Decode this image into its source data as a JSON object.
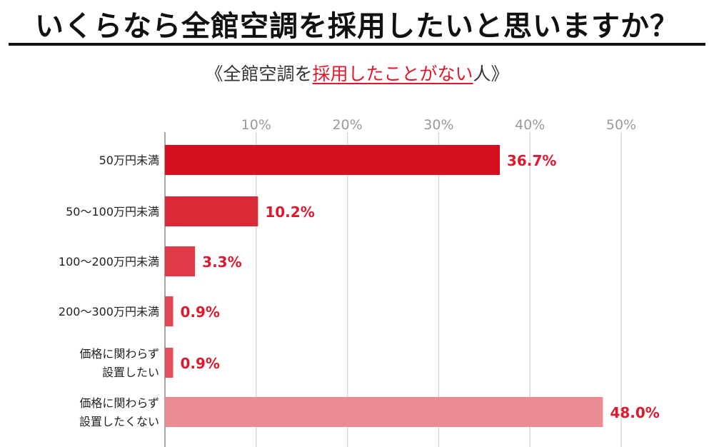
{
  "headline": "いくらなら全館空調を採用したいと思いますか？",
  "subtitle": {
    "prefix": "《全館空調を",
    "highlight": "採用したことがない",
    "suffix": "人》"
  },
  "colors": {
    "accent": "#e0182e",
    "bars": [
      "#d50f20",
      "#da2a38",
      "#e03a48",
      "#e24652",
      "#e44f5c",
      "#eb8b92"
    ],
    "label_text": "#e0182e",
    "grid": "#d8d8d8",
    "axis": "#888888",
    "tick_text": "#999999"
  },
  "chart_data": {
    "type": "bar",
    "orientation": "horizontal",
    "categories": [
      [
        "50万円未満"
      ],
      [
        "50〜100万円未満"
      ],
      [
        "100〜200万円未満"
      ],
      [
        "200〜300万円未満"
      ],
      [
        "価格に関わらず",
        "設置したい"
      ],
      [
        "価格に関わらず",
        "設置したくない"
      ]
    ],
    "values": [
      36.7,
      10.2,
      3.3,
      0.9,
      0.9,
      48.0
    ],
    "value_labels": [
      "36.7%",
      "10.2%",
      "3.3%",
      "0.9%",
      "0.9%",
      "48.0%"
    ],
    "xlim": [
      0,
      50
    ],
    "ticks": [
      10,
      20,
      30,
      40,
      50
    ],
    "tick_labels": [
      "10%",
      "20%",
      "30%",
      "40%",
      "50%"
    ],
    "grid": true,
    "tick_position": "top"
  }
}
